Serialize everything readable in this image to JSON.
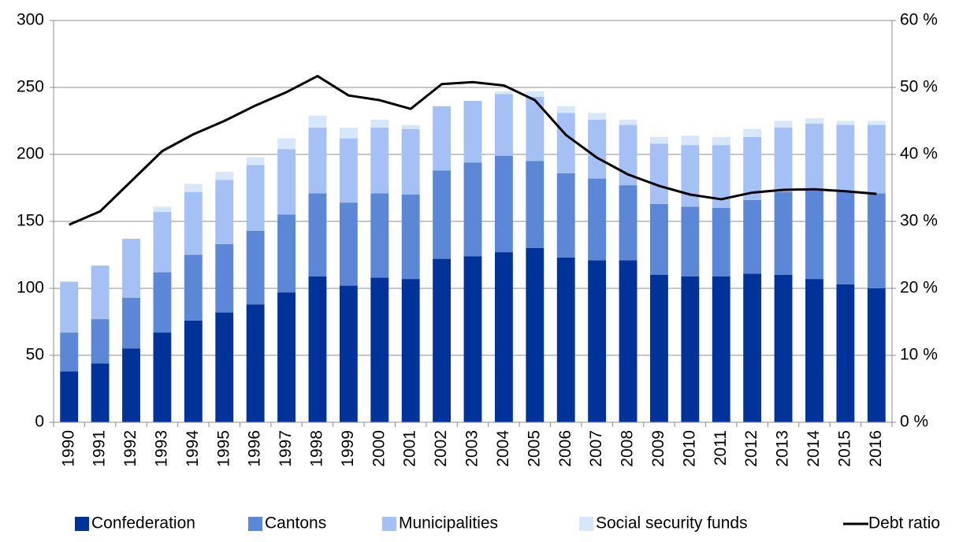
{
  "chart_data": {
    "type": "bar",
    "stacked": true,
    "categories": [
      "1990",
      "1991",
      "1992",
      "1993",
      "1994",
      "1995",
      "1996",
      "1997",
      "1998",
      "1999",
      "2000",
      "2001",
      "2002",
      "2003",
      "2004",
      "2005",
      "2006",
      "2007",
      "2008",
      "2009",
      "2010",
      "2011",
      "2012",
      "2013",
      "2014",
      "2015",
      "2016"
    ],
    "series": [
      {
        "name": "Confederation",
        "color": "#003399",
        "values": [
          38,
          44,
          55,
          67,
          76,
          82,
          88,
          97,
          109,
          102,
          108,
          107,
          122,
          124,
          127,
          130,
          123,
          121,
          121,
          110,
          109,
          109,
          111,
          110,
          107,
          103,
          100
        ]
      },
      {
        "name": "Cantons",
        "color": "#5b87d6",
        "values": [
          29,
          33,
          38,
          45,
          49,
          51,
          55,
          58,
          62,
          62,
          63,
          63,
          66,
          70,
          72,
          65,
          63,
          61,
          56,
          53,
          52,
          51,
          55,
          62,
          66,
          69,
          71
        ]
      },
      {
        "name": "Municipalities",
        "color": "#a4c0f4",
        "values": [
          38,
          40,
          44,
          45,
          47,
          48,
          49,
          49,
          49,
          48,
          49,
          49,
          48,
          46,
          46,
          48,
          45,
          44,
          45,
          45,
          46,
          47,
          47,
          48,
          50,
          50,
          51
        ]
      },
      {
        "name": "Social security funds",
        "color": "#d6e6fb",
        "values": [
          0,
          0,
          0,
          4,
          6,
          6,
          6,
          8,
          9,
          8,
          6,
          3,
          0,
          0,
          2,
          4,
          5,
          5,
          4,
          5,
          7,
          6,
          6,
          5,
          4,
          3,
          3
        ]
      },
      {
        "name": "Debt ratio",
        "color": "#000000",
        "type": "line",
        "axis": "y2",
        "values": [
          29.5,
          31.5,
          36,
          40.5,
          43,
          45,
          47.3,
          49.3,
          51.7,
          48.8,
          48.1,
          46.8,
          50.5,
          50.8,
          50.3,
          48.1,
          42.9,
          39.5,
          37,
          35.3,
          34,
          33.3,
          34.3,
          34.7,
          34.8,
          34.5,
          34.1
        ]
      }
    ],
    "ylim": [
      0,
      300
    ],
    "yticks": [
      0,
      50,
      100,
      150,
      200,
      250,
      300
    ],
    "y2lim": [
      0,
      60
    ],
    "y2ticks": [
      {
        "value": 0,
        "label": "0 %"
      },
      {
        "value": 10,
        "label": "10 %"
      },
      {
        "value": 20,
        "label": "20 %"
      },
      {
        "value": 30,
        "label": "30 %"
      },
      {
        "value": 40,
        "label": "40 %"
      },
      {
        "value": 50,
        "label": "50 %"
      },
      {
        "value": 60,
        "label": "60 %"
      }
    ],
    "grid": true,
    "legend": "bottom"
  }
}
